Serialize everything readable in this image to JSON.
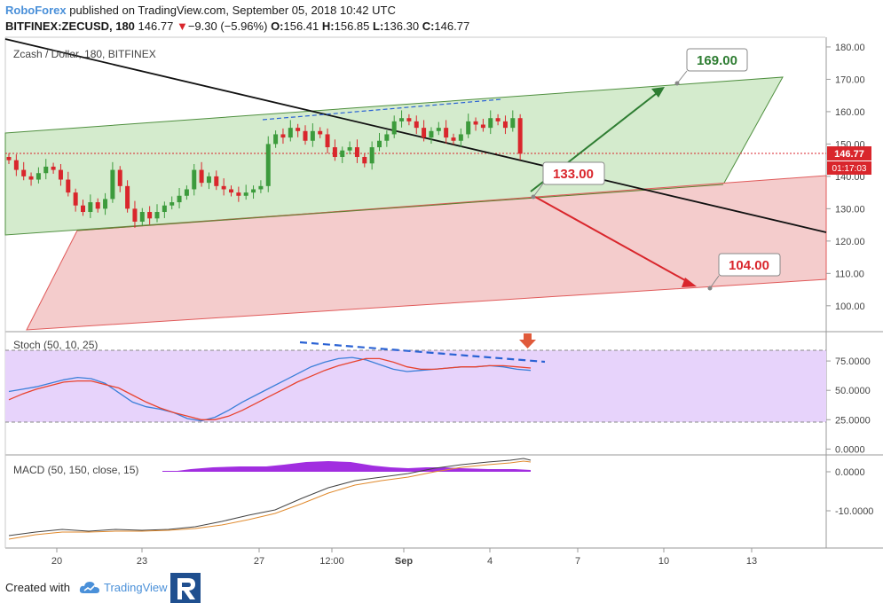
{
  "header": {
    "brand": "RoboForex",
    "published": "published on TradingView.com, September 05, 2018 10:42 UTC",
    "symbol": "BITFINEX:ZECUSD, 180",
    "last": "146.77",
    "change_arrow": "▼",
    "change": "−9.30 (−5.96%)",
    "o_label": "O:",
    "o": "156.41",
    "h_label": "H:",
    "h": "156.85",
    "l_label": "L:",
    "l": "136.30",
    "c_label": "C:",
    "c": "146.77"
  },
  "footer": {
    "created_with": "Created with",
    "tradingview": "TradingView",
    "logo_icon": "roboforex-logo-icon",
    "tv_icon": "tradingview-cloud-icon"
  },
  "chart_data": [
    {
      "type": "candlestick",
      "title": "Zcash / Dollar, 180, BITFINEX",
      "ylim": [
        92,
        183
      ],
      "y_ticks": [
        100,
        110,
        120,
        130,
        140,
        150,
        160,
        170,
        180
      ],
      "y_tick_labels": [
        "100.00",
        "110.00",
        "120.00",
        "130.00",
        "140.00",
        "150.00",
        "160.00",
        "170.00",
        "180.00"
      ],
      "x_tick_labels": [
        "20",
        "23",
        "27",
        "12:00",
        "Sep",
        "4",
        "7",
        "10",
        "13"
      ],
      "last_price_label": "146.77",
      "countdown_label": "01:17:03",
      "colors": {
        "up": "#3c9b3c",
        "down": "#d9262c",
        "channel_fill": "#cde7c4",
        "zone_fill": "#f3c6c6"
      },
      "series": [
        {
          "close": [
            145,
            142,
            140,
            139,
            141,
            143,
            142,
            139,
            135,
            131,
            129,
            132,
            130,
            133,
            142,
            137,
            130,
            126,
            129,
            127,
            129,
            131,
            132,
            134,
            136,
            142,
            138,
            140,
            137,
            136,
            135,
            134,
            135,
            136,
            137,
            150,
            153,
            152,
            155,
            154,
            151,
            154,
            153,
            149,
            146,
            148,
            149,
            146,
            144,
            149,
            151,
            153,
            157,
            158,
            157,
            155,
            152,
            154,
            155,
            152,
            151,
            153,
            157,
            156,
            155,
            158,
            157,
            155,
            158,
            147
          ]
        }
      ],
      "annotations": [
        {
          "label": "169.00",
          "color": "#2e7d32"
        },
        {
          "label": "133.00",
          "color": "#d9262c"
        },
        {
          "label": "104.00",
          "color": "#d9262c"
        }
      ]
    },
    {
      "type": "line",
      "title": "Stoch (50, 10, 25)",
      "ylim": [
        -5,
        100
      ],
      "y_ticks": [
        0,
        25,
        50,
        75
      ],
      "y_tick_labels": [
        "0.0000",
        "25.0000",
        "50.0000",
        "75.0000"
      ],
      "bands": [
        20,
        80
      ],
      "series": [
        {
          "color": "#3b7fd9",
          "values": [
            49,
            51,
            53,
            56,
            59,
            61,
            60,
            56,
            48,
            40,
            36,
            34,
            31,
            26,
            24,
            27,
            33,
            40,
            46,
            52,
            58,
            64,
            70,
            74,
            77,
            78,
            76,
            72,
            68,
            66,
            67,
            68,
            69,
            70,
            70,
            71,
            70,
            68,
            67
          ]
        },
        {
          "color": "#e8432e",
          "values": [
            42,
            47,
            51,
            54,
            57,
            58,
            58,
            55,
            52,
            46,
            40,
            35,
            31,
            28,
            25,
            25,
            28,
            33,
            39,
            45,
            51,
            57,
            62,
            67,
            71,
            74,
            77,
            77,
            74,
            70,
            68,
            68,
            69,
            70,
            70,
            71,
            71,
            70,
            69
          ]
        }
      ]
    },
    {
      "type": "line",
      "title": "MACD (50, 150, close, 15)",
      "y_ticks": [
        0,
        -10
      ],
      "y_tick_labels": [
        "0.0000",
        "-10.0000"
      ]
    }
  ]
}
